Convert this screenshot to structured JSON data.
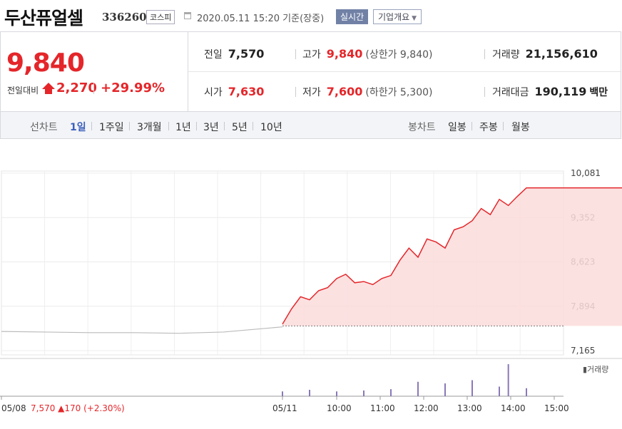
{
  "header": {
    "name": "두산퓨얼셀",
    "code": "336260",
    "market": "코스피",
    "datetime": "2020.05.11 15:20 기준(장중)",
    "realtime": "실시간",
    "company": "기업개요",
    "icons": [
      "calendar-icon",
      "chevron-down-icon"
    ]
  },
  "quote": {
    "price": "9,840",
    "prev_label": "전일대비",
    "change": "2,270",
    "change_pct": "+29.99%",
    "prev_close_label": "전일",
    "prev_close": "7,570",
    "high_label": "고가",
    "high": "9,840",
    "upper_limit": "(상한가 9,840)",
    "volume_label": "거래량",
    "volume": "21,156,610",
    "open_label": "시가",
    "open": "7,630",
    "low_label": "저가",
    "low": "7,600",
    "lower_limit": "(하한가 5,300)",
    "amount_label": "거래대금",
    "amount": "190,119",
    "amount_unit": "백만"
  },
  "tabs": {
    "line_label": "선차트",
    "line_items": [
      "1일",
      "1주일",
      "3개월",
      "1년",
      "3년",
      "5년",
      "10년"
    ],
    "active": "1일",
    "candle_label": "봉차트",
    "candle_items": [
      "일봉",
      "주봉",
      "월봉"
    ]
  },
  "colors": {
    "up": "#e4262a",
    "fill": "#fbdcdc",
    "prev_line": "#bbbbbb",
    "volume": "#8a78b8",
    "accent": "#3c5fbd"
  },
  "chart_data": {
    "type": "line",
    "title": "",
    "xlabel": "",
    "ylabel": "",
    "ylim": [
      7165,
      10081
    ],
    "y_ticks": [
      "10,081",
      "9,352",
      "8,623",
      "7,894",
      "7,165"
    ],
    "x_tick_labels": [
      "05/08",
      "05/11",
      "10:00",
      "11:00",
      "12:00",
      "13:00",
      "14:00",
      "15:00"
    ],
    "prev_close": 7570,
    "prev_day_annotation": {
      "date": "05/08",
      "price": "7,570",
      "change": "▲170",
      "pct": "(+2.30%)"
    },
    "volume_legend": "거래량",
    "series": [
      {
        "name": "05/08",
        "x": [
          "09:00",
          "10:00",
          "11:00",
          "12:00",
          "13:00",
          "14:00",
          "15:20"
        ],
        "values": [
          7480,
          7470,
          7460,
          7460,
          7450,
          7470,
          7555
        ]
      },
      {
        "name": "05/11",
        "x": [
          "09:00",
          "09:10",
          "09:20",
          "09:30",
          "09:40",
          "09:50",
          "10:00",
          "10:10",
          "10:20",
          "10:30",
          "10:40",
          "10:50",
          "11:00",
          "11:10",
          "11:20",
          "11:30",
          "11:40",
          "11:50",
          "12:00",
          "12:10",
          "12:20",
          "12:30",
          "12:40",
          "12:50",
          "13:00",
          "13:10",
          "13:20",
          "13:30",
          "15:20"
        ],
        "values": [
          7600,
          7850,
          8050,
          8000,
          8150,
          8200,
          8350,
          8420,
          8280,
          8300,
          8250,
          8350,
          8400,
          8650,
          8850,
          8700,
          9000,
          8950,
          8850,
          9150,
          9200,
          9300,
          9500,
          9400,
          9650,
          9550,
          9700,
          9840,
          9840
        ]
      }
    ],
    "volume": {
      "x": [
        "09:00",
        "09:30",
        "10:00",
        "10:30",
        "11:00",
        "11:30",
        "12:00",
        "12:30",
        "13:00",
        "13:10",
        "13:30",
        "14:00"
      ],
      "values": [
        0.15,
        0.2,
        0.15,
        0.18,
        0.22,
        0.45,
        0.4,
        0.5,
        0.3,
        1.0,
        0.25,
        0
      ]
    }
  }
}
